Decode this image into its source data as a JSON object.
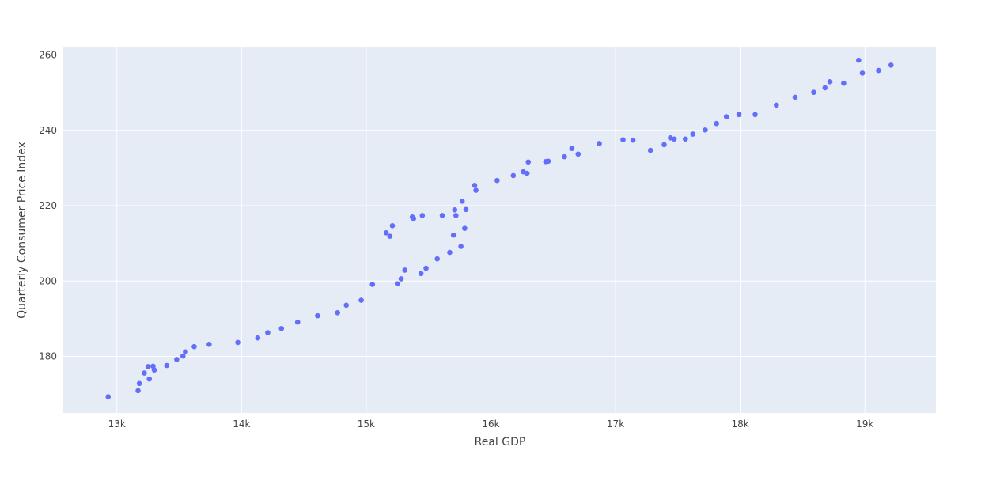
{
  "chart_data": {
    "type": "scatter",
    "title": "",
    "xlabel": "Real GDP",
    "ylabel": "Quarterly Consumer Price Index",
    "xlim": [
      12570,
      19570
    ],
    "ylim": [
      165,
      262
    ],
    "x_ticks": [
      13000,
      14000,
      15000,
      16000,
      17000,
      18000,
      19000
    ],
    "x_tick_labels": [
      "13k",
      "14k",
      "15k",
      "16k",
      "17k",
      "18k",
      "19k"
    ],
    "y_ticks": [
      180,
      200,
      220,
      240,
      260
    ],
    "y_tick_labels": [
      "180",
      "200",
      "220",
      "240",
      "260"
    ],
    "grid": true,
    "legend": "none",
    "colors": {
      "plot_bg": "#e5ecf6",
      "grid": "#ffffff",
      "marker": "#636efa",
      "text": "#444444"
    },
    "series": [
      {
        "points": [
          [
            12930,
            169.3
          ],
          [
            13170,
            170.9
          ],
          [
            13180,
            172.8
          ],
          [
            13220,
            175.6
          ],
          [
            13250,
            177.3
          ],
          [
            13260,
            174.0
          ],
          [
            13290,
            177.4
          ],
          [
            13300,
            176.4
          ],
          [
            13400,
            177.6
          ],
          [
            13480,
            179.2
          ],
          [
            13530,
            180.1
          ],
          [
            13550,
            181.2
          ],
          [
            13620,
            182.6
          ],
          [
            13740,
            183.2
          ],
          [
            13970,
            183.7
          ],
          [
            14130,
            184.9
          ],
          [
            14210,
            186.3
          ],
          [
            14320,
            187.4
          ],
          [
            14450,
            189.1
          ],
          [
            14610,
            190.8
          ],
          [
            14770,
            191.6
          ],
          [
            14840,
            193.6
          ],
          [
            14960,
            194.9
          ],
          [
            15050,
            199.1
          ],
          [
            15160,
            212.8
          ],
          [
            15190,
            211.9
          ],
          [
            15210,
            214.7
          ],
          [
            15250,
            199.3
          ],
          [
            15280,
            200.6
          ],
          [
            15310,
            202.9
          ],
          [
            15370,
            217.0
          ],
          [
            15380,
            216.6
          ],
          [
            15440,
            202.0
          ],
          [
            15450,
            217.4
          ],
          [
            15480,
            203.4
          ],
          [
            15570,
            205.9
          ],
          [
            15610,
            217.4
          ],
          [
            15670,
            207.6
          ],
          [
            15700,
            212.2
          ],
          [
            15710,
            218.9
          ],
          [
            15720,
            217.4
          ],
          [
            15760,
            209.2
          ],
          [
            15770,
            221.2
          ],
          [
            15790,
            214.0
          ],
          [
            15800,
            219.0
          ],
          [
            15870,
            225.4
          ],
          [
            15880,
            224.1
          ],
          [
            16050,
            226.7
          ],
          [
            16180,
            228.0
          ],
          [
            16260,
            229.0
          ],
          [
            16290,
            228.6
          ],
          [
            16300,
            231.6
          ],
          [
            16440,
            231.7
          ],
          [
            16460,
            231.8
          ],
          [
            16590,
            233.0
          ],
          [
            16650,
            235.2
          ],
          [
            16700,
            233.7
          ],
          [
            16870,
            236.5
          ],
          [
            17060,
            237.5
          ],
          [
            17140,
            237.4
          ],
          [
            17280,
            234.7
          ],
          [
            17390,
            236.2
          ],
          [
            17440,
            238.0
          ],
          [
            17470,
            237.7
          ],
          [
            17560,
            237.7
          ],
          [
            17620,
            239.0
          ],
          [
            17720,
            240.1
          ],
          [
            17810,
            241.8
          ],
          [
            17890,
            243.6
          ],
          [
            17990,
            244.2
          ],
          [
            18120,
            244.2
          ],
          [
            18290,
            246.7
          ],
          [
            18440,
            248.8
          ],
          [
            18590,
            250.1
          ],
          [
            18680,
            251.3
          ],
          [
            18720,
            252.9
          ],
          [
            18830,
            252.5
          ],
          [
            18950,
            258.6
          ],
          [
            18980,
            255.2
          ],
          [
            19110,
            255.9
          ],
          [
            19210,
            257.3
          ]
        ]
      }
    ]
  }
}
